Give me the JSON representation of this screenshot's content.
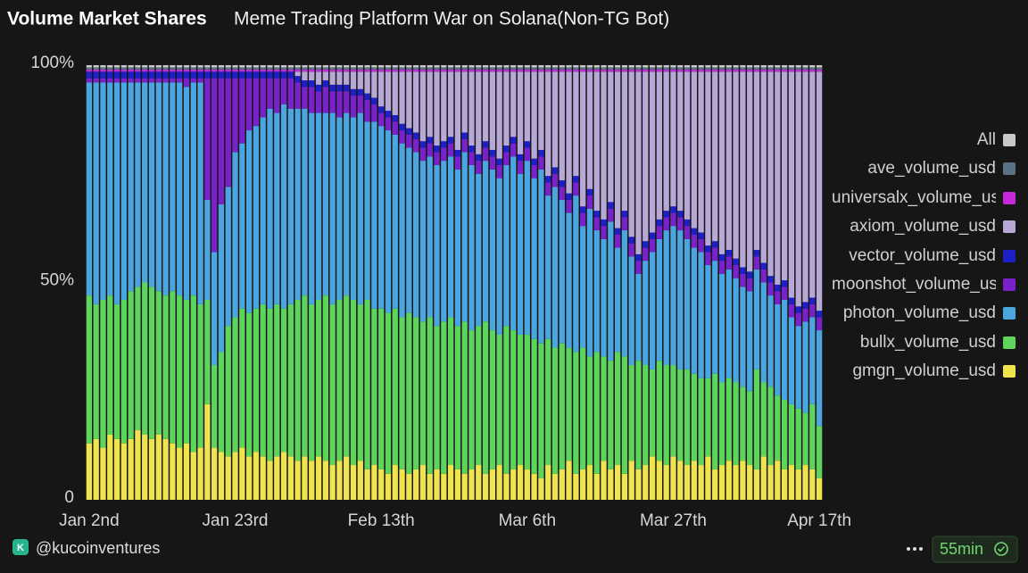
{
  "chart_data": {
    "type": "stacked_bar",
    "title": "Volume Market Shares",
    "subtitle": "Meme Trading Platform War on Solana(Non-TG Bot)",
    "categories": [
      "Jan 2nd",
      null,
      null,
      null,
      null,
      null,
      null,
      null,
      null,
      null,
      null,
      null,
      null,
      null,
      null,
      null,
      null,
      null,
      null,
      null,
      null,
      "Jan 23rd",
      null,
      null,
      null,
      null,
      null,
      null,
      null,
      null,
      null,
      null,
      null,
      null,
      null,
      null,
      null,
      null,
      null,
      null,
      null,
      null,
      "Feb 13th",
      null,
      null,
      null,
      null,
      null,
      null,
      null,
      null,
      null,
      null,
      null,
      null,
      null,
      null,
      null,
      null,
      null,
      null,
      null,
      null,
      "Mar 6th",
      null,
      null,
      null,
      null,
      null,
      null,
      null,
      null,
      null,
      null,
      null,
      null,
      null,
      null,
      null,
      null,
      null,
      null,
      null,
      null,
      "Mar 27th",
      null,
      null,
      null,
      null,
      null,
      null,
      null,
      null,
      null,
      null,
      null,
      null,
      null,
      null,
      null,
      null,
      null,
      null,
      null,
      null,
      "Apr 17th"
    ],
    "series": [
      {
        "name": "gmgn_volume_usd",
        "color": "#f0e44e",
        "values": [
          13,
          14,
          12,
          15,
          14,
          13,
          14,
          16,
          15,
          14,
          15,
          14,
          13,
          12,
          13,
          11,
          12,
          22,
          12,
          11,
          10,
          11,
          12,
          10,
          11,
          10,
          9,
          10,
          11,
          10,
          9,
          10,
          9,
          10,
          9,
          8,
          9,
          10,
          8,
          9,
          7,
          8,
          7,
          6,
          8,
          7,
          6,
          7,
          8,
          6,
          7,
          6,
          8,
          7,
          6,
          7,
          8,
          6,
          7,
          8,
          6,
          7,
          8,
          7,
          6,
          5,
          8,
          6,
          7,
          9,
          6,
          7,
          8,
          6,
          9,
          7,
          8,
          6,
          9,
          7,
          8,
          10,
          9,
          8,
          10,
          9,
          8,
          9,
          8,
          10,
          7,
          8,
          9,
          8,
          9,
          8,
          7,
          10,
          8,
          9,
          7,
          8,
          7,
          8,
          7,
          5
        ]
      },
      {
        "name": "bullx_volume_usd",
        "color": "#5fd45c",
        "values": [
          34,
          31,
          34,
          32,
          31,
          33,
          34,
          33,
          35,
          35,
          33,
          33,
          35,
          35,
          33,
          36,
          33,
          24,
          19,
          23,
          30,
          31,
          32,
          33,
          33,
          35,
          35,
          35,
          33,
          35,
          37,
          37,
          36,
          36,
          38,
          37,
          37,
          37,
          38,
          36,
          39,
          36,
          37,
          37,
          36,
          35,
          37,
          35,
          33,
          36,
          33,
          35,
          34,
          33,
          35,
          32,
          32,
          35,
          32,
          30,
          34,
          32,
          30,
          31,
          31,
          31,
          29,
          29,
          29,
          26,
          28,
          28,
          25,
          28,
          24,
          25,
          26,
          27,
          22,
          25,
          23,
          20,
          23,
          23,
          21,
          21,
          22,
          20,
          20,
          18,
          22,
          19,
          19,
          19,
          17,
          17,
          23,
          17,
          18,
          15,
          16,
          14,
          14,
          12,
          15,
          12
        ]
      },
      {
        "name": "photon_volume_usd",
        "color": "#4ba6e0",
        "values": [
          49,
          51,
          50,
          49,
          51,
          50,
          48,
          47,
          46,
          47,
          48,
          49,
          48,
          49,
          49,
          49,
          51,
          23,
          26,
          34,
          32,
          38,
          38,
          42,
          42,
          43,
          46,
          44,
          47,
          45,
          44,
          43,
          44,
          43,
          42,
          44,
          42,
          42,
          42,
          44,
          41,
          43,
          42,
          42,
          40,
          40,
          38,
          38,
          37,
          37,
          37,
          37,
          37,
          36,
          39,
          38,
          35,
          37,
          37,
          36,
          37,
          40,
          37,
          40,
          37,
          40,
          33,
          37,
          33,
          31,
          36,
          28,
          34,
          28,
          27,
          32,
          24,
          29,
          25,
          20,
          24,
          27,
          28,
          31,
          32,
          32,
          30,
          29,
          29,
          26,
          26,
          25,
          25,
          24,
          23,
          23,
          23,
          23,
          21,
          21,
          23,
          20,
          19,
          21,
          20,
          22
        ]
      },
      {
        "name": "moonshot_volume_usd",
        "color": "#7a22c9",
        "values": [
          1,
          1,
          1,
          1,
          1,
          1,
          1,
          1,
          1,
          1,
          1,
          1,
          1,
          1,
          2,
          1,
          1,
          28,
          40,
          29,
          25,
          17,
          15,
          12,
          11,
          9,
          7,
          8,
          6,
          7,
          6,
          5,
          6,
          5,
          6,
          5,
          6,
          5,
          5,
          4,
          5,
          4,
          3,
          3,
          3,
          3,
          3,
          3,
          3,
          3,
          3,
          3,
          3,
          3,
          3,
          3,
          3,
          3,
          3,
          3,
          3,
          3,
          3,
          3,
          3,
          3,
          3,
          3,
          3,
          3,
          3,
          3,
          3,
          3,
          3,
          3,
          3,
          3,
          3,
          3,
          3,
          3,
          3,
          3,
          3,
          3,
          3,
          3,
          3,
          3,
          3,
          3,
          3,
          3,
          3,
          3,
          3,
          3,
          3,
          3,
          3,
          3,
          3,
          3,
          3,
          3
        ]
      },
      {
        "name": "vector_volume_usd",
        "color": "#1c20c6",
        "values": [
          1.5,
          1.5,
          1.5,
          1.5,
          1.5,
          1.5,
          1.5,
          1.5,
          1.5,
          1.5,
          1.5,
          1.5,
          1.5,
          1.5,
          1.5,
          1.5,
          1.5,
          1.5,
          1.5,
          1.5,
          1.5,
          1.5,
          1.5,
          1.5,
          1.5,
          1.5,
          1.5,
          1.5,
          1.5,
          1.5,
          1.5,
          1.5,
          1.5,
          1.5,
          1.5,
          1.5,
          1.5,
          1.5,
          1.5,
          1.5,
          1.5,
          1.5,
          1.5,
          1.5,
          1.5,
          1.5,
          1.5,
          1.5,
          1.5,
          1.5,
          1.5,
          1.5,
          1.5,
          1.5,
          1.5,
          1.5,
          1.5,
          1.5,
          1.5,
          1.5,
          1.5,
          1.5,
          1.5,
          1.5,
          1.5,
          1.5,
          1.5,
          1.5,
          1.5,
          1.5,
          1.5,
          1.5,
          1.5,
          1.5,
          1.5,
          1.5,
          1.5,
          1.5,
          1.5,
          1.5,
          1.5,
          1.5,
          1.5,
          1.5,
          1.5,
          1.5,
          1.5,
          1.5,
          1.5,
          1.5,
          1.5,
          1.5,
          1.5,
          1.5,
          1.5,
          1.5,
          1.5,
          1.5,
          1.5,
          1.5,
          1.5,
          1.5,
          1.5,
          1.5,
          1.5,
          1.5
        ]
      },
      {
        "name": "axiom_volume_usd",
        "color": "#b8a8d6",
        "values": [
          0,
          0,
          0,
          0,
          0,
          0,
          0,
          0,
          0,
          0,
          0,
          0,
          0,
          0,
          0,
          0,
          0,
          0,
          0,
          0,
          0,
          0,
          0,
          0,
          0,
          0,
          0,
          0,
          0,
          0,
          1,
          2,
          2,
          3,
          2,
          3,
          3,
          3,
          4,
          4,
          5,
          6,
          8,
          9,
          10,
          12,
          13,
          14,
          16,
          15,
          17,
          16,
          15,
          18,
          14,
          17,
          19,
          16,
          18,
          20,
          17,
          15,
          19,
          16,
          20,
          18,
          24,
          22,
          25,
          28,
          24,
          31,
          27,
          32,
          34,
          30,
          36,
          32,
          38,
          42,
          39,
          37,
          34,
          32,
          31,
          32,
          34,
          36,
          37,
          40,
          39,
          42,
          41,
          43,
          45,
          46,
          41,
          44,
          47,
          49,
          48,
          52,
          54,
          53,
          52,
          55
        ]
      },
      {
        "name": "universalx_volume_usd",
        "color": "#c62ad8",
        "values": [
          0.5,
          0.5,
          0.5,
          0.5,
          0.5,
          0.5,
          0.5,
          0.5,
          0.5,
          0.5,
          0.5,
          0.5,
          0.5,
          0.5,
          0.5,
          0.5,
          0.5,
          0.5,
          0.5,
          0.5,
          0.5,
          0.5,
          0.5,
          0.5,
          0.5,
          0.5,
          0.5,
          0.5,
          0.5,
          0.5,
          0.5,
          0.5,
          0.5,
          0.5,
          0.5,
          0.5,
          0.5,
          0.5,
          0.5,
          0.5,
          0.5,
          0.5,
          0.5,
          0.5,
          0.5,
          0.5,
          0.5,
          0.5,
          0.5,
          0.5,
          0.5,
          0.5,
          0.5,
          0.5,
          0.5,
          0.5,
          0.5,
          0.5,
          0.5,
          0.5,
          0.5,
          0.5,
          0.5,
          0.5,
          0.5,
          0.5,
          0.5,
          0.5,
          0.5,
          0.5,
          0.5,
          0.5,
          0.5,
          0.5,
          0.5,
          0.5,
          0.5,
          0.5,
          0.5,
          0.5,
          0.5,
          0.5,
          0.5,
          0.5,
          0.5,
          0.5,
          0.5,
          0.5,
          0.5,
          0.5,
          0.5,
          0.5,
          0.5,
          0.5,
          0.5,
          0.5,
          0.5,
          0.5,
          0.5,
          0.5,
          0.5,
          0.5,
          0.5,
          0.5,
          0.5,
          0.5
        ]
      },
      {
        "name": "ave_volume_usd",
        "color": "#5b7186",
        "values": [
          0.5,
          0.5,
          0.5,
          0.5,
          0.5,
          0.5,
          0.5,
          0.5,
          0.5,
          0.5,
          0.5,
          0.5,
          0.5,
          0.5,
          0.5,
          0.5,
          0.5,
          0.5,
          0.5,
          0.5,
          0.5,
          0.5,
          0.5,
          0.5,
          0.5,
          0.5,
          0.5,
          0.5,
          0.5,
          0.5,
          0.5,
          0.5,
          0.5,
          0.5,
          0.5,
          0.5,
          0.5,
          0.5,
          0.5,
          0.5,
          0.5,
          0.5,
          0.5,
          0.5,
          0.5,
          0.5,
          0.5,
          0.5,
          0.5,
          0.5,
          0.5,
          0.5,
          0.5,
          0.5,
          0.5,
          0.5,
          0.5,
          0.5,
          0.5,
          0.5,
          0.5,
          0.5,
          0.5,
          0.5,
          0.5,
          0.5,
          0.5,
          0.5,
          0.5,
          0.5,
          0.5,
          0.5,
          0.5,
          0.5,
          0.5,
          0.5,
          0.5,
          0.5,
          0.5,
          0.5,
          0.5,
          0.5,
          0.5,
          0.5,
          0.5,
          0.5,
          0.5,
          0.5,
          0.5,
          0.5,
          0.5,
          0.5,
          0.5,
          0.5,
          0.5,
          0.5,
          0.5,
          0.5,
          0.5,
          0.5,
          0.5,
          0.5,
          0.5,
          0.5,
          0.5,
          0.5
        ]
      },
      {
        "name": "All",
        "color": "#c8c8c8",
        "values": [
          0.5,
          0.5,
          0.5,
          0.5,
          0.5,
          0.5,
          0.5,
          0.5,
          0.5,
          0.5,
          0.5,
          0.5,
          0.5,
          0.5,
          0.5,
          0.5,
          0.5,
          0.5,
          0.5,
          0.5,
          0.5,
          0.5,
          0.5,
          0.5,
          0.5,
          0.5,
          0.5,
          0.5,
          0.5,
          0.5,
          0.5,
          0.5,
          0.5,
          0.5,
          0.5,
          0.5,
          0.5,
          0.5,
          0.5,
          0.5,
          0.5,
          0.5,
          0.5,
          0.5,
          0.5,
          0.5,
          0.5,
          0.5,
          0.5,
          0.5,
          0.5,
          0.5,
          0.5,
          0.5,
          0.5,
          0.5,
          0.5,
          0.5,
          0.5,
          0.5,
          0.5,
          0.5,
          0.5,
          0.5,
          0.5,
          0.5,
          0.5,
          0.5,
          0.5,
          0.5,
          0.5,
          0.5,
          0.5,
          0.5,
          0.5,
          0.5,
          0.5,
          0.5,
          0.5,
          0.5,
          0.5,
          0.5,
          0.5,
          0.5,
          0.5,
          0.5,
          0.5,
          0.5,
          0.5,
          0.5,
          0.5,
          0.5,
          0.5,
          0.5,
          0.5,
          0.5,
          0.5,
          0.5,
          0.5,
          0.5,
          0.5,
          0.5,
          0.5,
          0.5,
          0.5,
          0.5
        ]
      }
    ],
    "ylim": [
      0,
      100
    ],
    "yticks": [
      0,
      {
        "value": 50,
        "label": "50%"
      },
      {
        "value": 100,
        "label": "100%"
      }
    ],
    "footer": {
      "handle": "@kucoinventures",
      "refresh": "55min"
    }
  }
}
